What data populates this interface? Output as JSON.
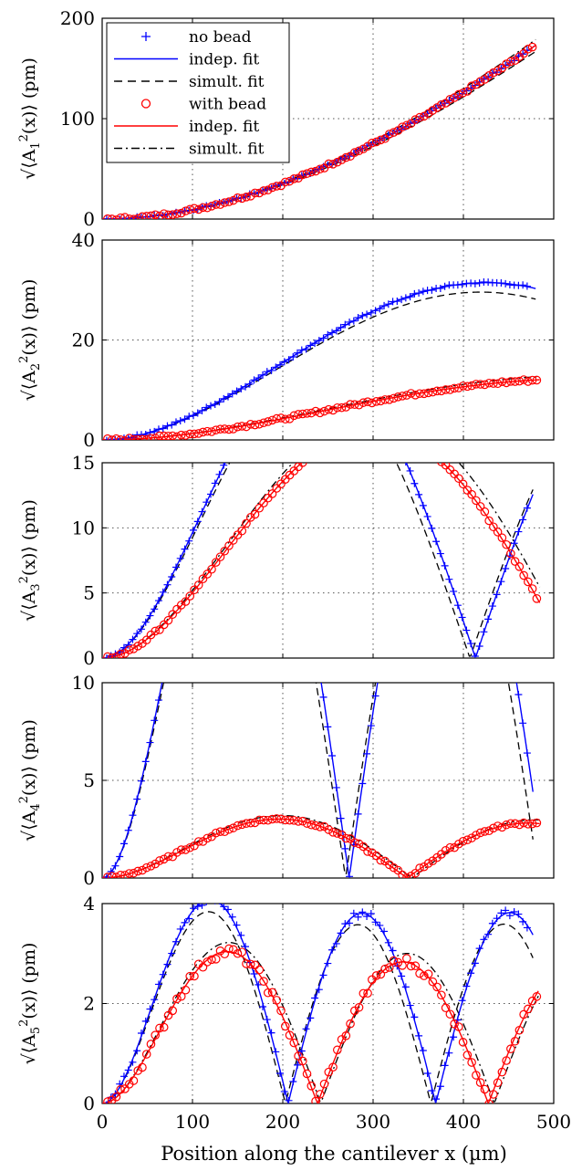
{
  "chart_data": {
    "xlabel": "Position along the cantilever x (µm)",
    "xlim": [
      0,
      500
    ],
    "xticks": [
      0,
      100,
      200,
      300,
      400,
      500
    ],
    "grid": true,
    "legend": {
      "placement": "top-left",
      "entries": [
        {
          "label": "no bead",
          "marker": "+",
          "color": "#0000ff"
        },
        {
          "label": "indep. fit",
          "line": "solid",
          "color": "#0000ff"
        },
        {
          "label": "simult. fit",
          "line": "dashed",
          "color": "#000000"
        },
        {
          "label": "with bead",
          "marker": "o",
          "color": "#ff0000"
        },
        {
          "label": "indep. fit",
          "line": "solid",
          "color": "#ff0000"
        },
        {
          "label": "simult. fit",
          "line": "dashdot",
          "color": "#000000"
        }
      ]
    },
    "panels": [
      {
        "mode": 1,
        "ylabel_base": "A",
        "ylabel_sub": "1",
        "ylabel_unit": "(pm)",
        "ylim": [
          0,
          200
        ],
        "yticks": [
          0,
          100,
          200
        ],
        "ymax_text": "200",
        "no_bead": {
          "L": 475,
          "lambda": 0.94,
          "amp": 170
        },
        "with_bead": {
          "L": 475,
          "lambda": 0.94,
          "amp": 170
        }
      },
      {
        "mode": 2,
        "ylabel_base": "A",
        "ylabel_sub": "2",
        "ylabel_unit": "(pm)",
        "ylim": [
          0,
          40
        ],
        "yticks": [
          0,
          20,
          40
        ],
        "ymax_text": "40",
        "no_bead": {
          "L": 475,
          "lambda": 2.55,
          "amp": 30.5
        },
        "with_bead": {
          "L": 480,
          "lambda": 2.05,
          "amp": 12
        }
      },
      {
        "mode": 3,
        "ylabel_base": "A",
        "ylabel_sub": "3",
        "ylabel_unit": "(pm)",
        "ylim": [
          0,
          15
        ],
        "yticks": [
          0,
          5,
          10,
          15
        ],
        "ymax_text": "15",
        "no_bead": {
          "L": 472,
          "lambda": 4.5,
          "amp": 11.7
        },
        "with_bead": {
          "L": 480,
          "lambda": 3.65,
          "amp": 4.8
        }
      },
      {
        "mode": 4,
        "ylabel_base": "A",
        "ylabel_sub": "4",
        "ylabel_unit": "(pm)",
        "ylim": [
          0,
          10
        ],
        "yticks": [
          0,
          5,
          10
        ],
        "ymax_text": "10",
        "no_bead": {
          "L": 472,
          "lambda": 6.8,
          "amp": 6.0
        },
        "with_bead": {
          "L": 480,
          "lambda": 5.6,
          "amp": 2.8
        }
      },
      {
        "mode": 5,
        "ylabel_base": "A",
        "ylabel_sub": "5",
        "ylabel_unit": "(pm)",
        "ylim": [
          0,
          4
        ],
        "yticks": [
          0,
          2,
          4
        ],
        "ymax_text": "4",
        "no_bead": {
          "L": 473,
          "lambda": 9.05,
          "amp": 3.5
        },
        "with_bead": {
          "L": 478,
          "lambda": 7.9,
          "amp": 2.1
        }
      }
    ],
    "colors": {
      "no_bead": "#0000ff",
      "with_bead": "#ff0000",
      "simult": "#000000",
      "grid": "#555555"
    }
  }
}
